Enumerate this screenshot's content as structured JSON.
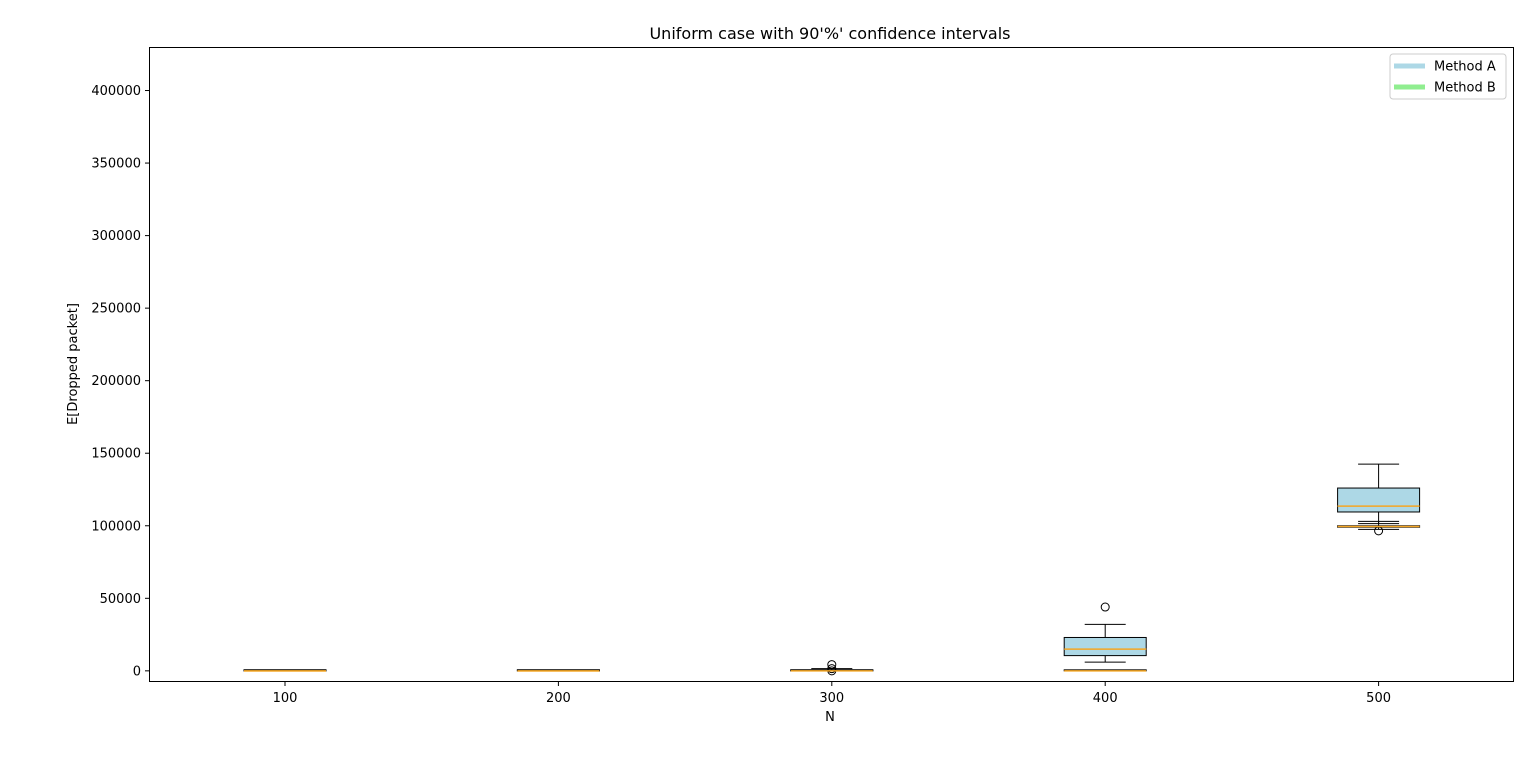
{
  "chart_data": {
    "type": "box",
    "title": "Uniform case with 90'%' confidence intervals",
    "xlabel": "N",
    "ylabel": "E[Dropped packet]",
    "categories": [
      "100",
      "200",
      "300",
      "400",
      "500"
    ],
    "ylim": [
      -7000,
      430000
    ],
    "yticks": [
      0,
      50000,
      100000,
      150000,
      200000,
      250000,
      300000,
      350000,
      400000
    ],
    "ytick_labels": [
      "0",
      "50000",
      "100000",
      "150000",
      "200000",
      "250000",
      "300000",
      "350000",
      "400000"
    ],
    "grid": false,
    "legend_position": "top-right",
    "series": [
      {
        "name": "Method A",
        "color": "#add8e6",
        "median_color": "#f5a623",
        "boxes": [
          {
            "category": "100",
            "whisker_low": 0,
            "q1": 0,
            "median": 0,
            "q3": 200,
            "whisker_high": 500,
            "outliers": []
          },
          {
            "category": "200",
            "whisker_low": 0,
            "q1": 0,
            "median": 0,
            "q3": 200,
            "whisker_high": 600,
            "outliers": []
          },
          {
            "category": "300",
            "whisker_low": 0,
            "q1": 0,
            "median": 200,
            "q3": 600,
            "whisker_high": 1500,
            "outliers": [
              4300,
              1500,
              0
            ]
          },
          {
            "category": "400",
            "whisker_low": 6000,
            "q1": 10500,
            "median": 15000,
            "q3": 23000,
            "whisker_high": 32000,
            "outliers": [
              44000
            ]
          },
          {
            "category": "500",
            "whisker_low": 101500,
            "q1": 109500,
            "median": 113500,
            "q3": 126000,
            "whisker_high": 142500,
            "outliers": [
              96500
            ]
          }
        ]
      },
      {
        "name": "Method B",
        "color": "#90ee90",
        "median_color": "#f5a623",
        "boxes": [
          {
            "category": "100",
            "whisker_low": 0,
            "q1": 0,
            "median": 0,
            "q3": 0,
            "whisker_high": 0,
            "outliers": []
          },
          {
            "category": "200",
            "whisker_low": 0,
            "q1": 0,
            "median": 0,
            "q3": 0,
            "whisker_high": 0,
            "outliers": []
          },
          {
            "category": "300",
            "whisker_low": 0,
            "q1": 0,
            "median": 0,
            "q3": 0,
            "whisker_high": 0,
            "outliers": []
          },
          {
            "category": "400",
            "whisker_low": 0,
            "q1": 0,
            "median": 0,
            "q3": 0,
            "whisker_high": 0,
            "outliers": []
          },
          {
            "category": "500",
            "whisker_low": 97500,
            "q1": 99000,
            "median": 99500,
            "q3": 100000,
            "whisker_high": 103000,
            "outliers": []
          }
        ]
      }
    ]
  }
}
